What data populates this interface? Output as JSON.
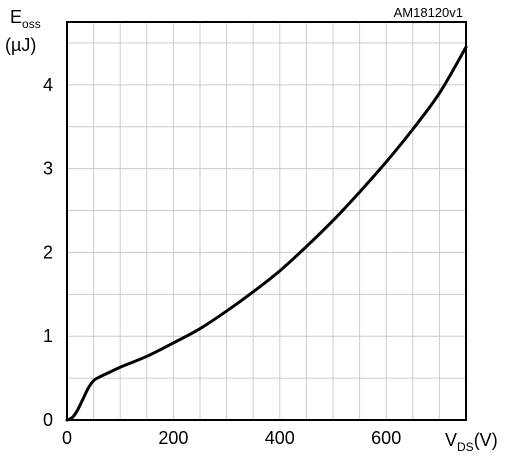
{
  "figure_id": "AM18120v1",
  "chart_data": {
    "type": "line",
    "ylabel": {
      "main": "E",
      "sub": "oss",
      "unit": "(µJ)"
    },
    "xlabel": {
      "main": "V",
      "sub": "DS",
      "unit": "(V)"
    },
    "xlim": [
      0,
      750
    ],
    "ylim": [
      0,
      4.75
    ],
    "x_ticks": [
      0,
      200,
      400,
      600
    ],
    "x_tick_labels": [
      "0",
      "200",
      "400",
      "600"
    ],
    "y_ticks": [
      0,
      1,
      2,
      3,
      4
    ],
    "y_tick_labels": [
      "0",
      "1",
      "2",
      "3",
      "4"
    ],
    "x_grid_step": 50,
    "y_grid_step": 0.5,
    "grid": true,
    "series": [
      {
        "color": "#000000",
        "x": [
          0,
          10,
          20,
          30,
          40,
          50,
          60,
          80,
          100,
          150,
          200,
          250,
          300,
          350,
          400,
          450,
          500,
          550,
          600,
          650,
          700,
          750
        ],
        "y": [
          0,
          0.03,
          0.12,
          0.25,
          0.38,
          0.47,
          0.51,
          0.57,
          0.63,
          0.76,
          0.92,
          1.09,
          1.3,
          1.53,
          1.78,
          2.07,
          2.38,
          2.72,
          3.08,
          3.47,
          3.9,
          4.45
        ]
      }
    ]
  }
}
